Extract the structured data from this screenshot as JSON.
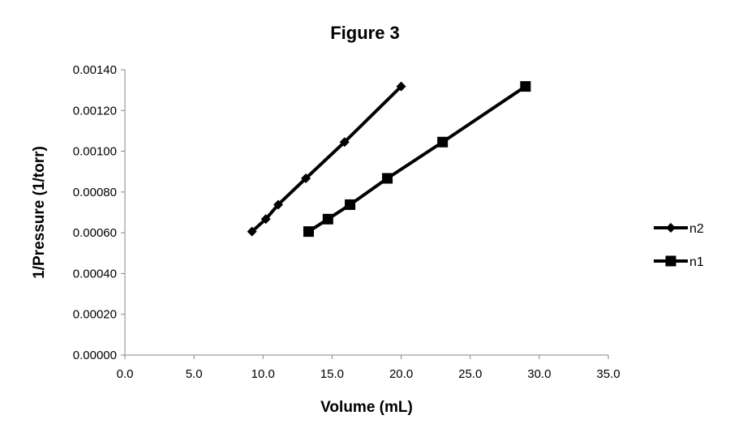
{
  "chart_data": {
    "type": "scatter",
    "title": "Figure 3",
    "xlabel": "Volume (mL)",
    "ylabel": "1/Pressure (1/torr)",
    "xlim": [
      0,
      35
    ],
    "ylim": [
      0,
      0.0014
    ],
    "x_ticks": [
      "0.0",
      "5.0",
      "10.0",
      "15.0",
      "20.0",
      "25.0",
      "30.0",
      "35.0"
    ],
    "y_ticks": [
      "0.00000",
      "0.00020",
      "0.00040",
      "0.00060",
      "0.00080",
      "0.00100",
      "0.00120",
      "0.00140"
    ],
    "grid": false,
    "legend_position": "right",
    "lines_connected": true,
    "series": [
      {
        "name": "n2",
        "marker": "diamond",
        "color": "#000000",
        "points": [
          [
            9.2,
            0.000606
          ],
          [
            10.2,
            0.000667
          ],
          [
            11.1,
            0.000738
          ],
          [
            13.1,
            0.000867
          ],
          [
            15.9,
            0.001045
          ],
          [
            20.0,
            0.001318
          ]
        ]
      },
      {
        "name": "n1",
        "marker": "square",
        "color": "#000000",
        "points": [
          [
            13.3,
            0.000606
          ],
          [
            14.7,
            0.000667
          ],
          [
            16.3,
            0.000738
          ],
          [
            19.0,
            0.000867
          ],
          [
            23.0,
            0.001045
          ],
          [
            29.0,
            0.001318
          ]
        ]
      }
    ]
  }
}
